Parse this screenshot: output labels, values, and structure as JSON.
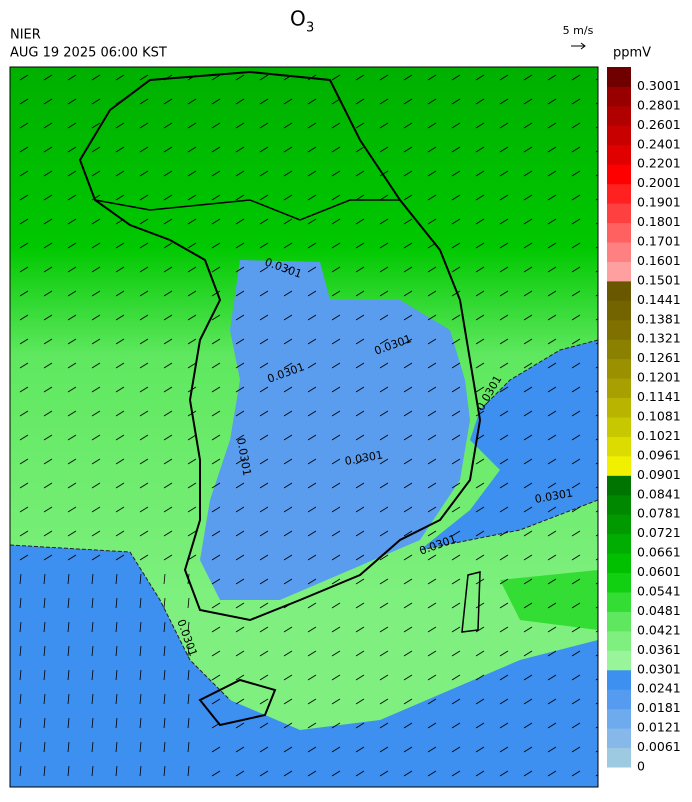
{
  "header": {
    "agency": "NIER",
    "datetime": "AUG 19 2025 06:00 KST",
    "title": "O",
    "title_subscript": "3",
    "wind_reference": "5 m/s"
  },
  "colorbar": {
    "unit": "ppmV",
    "levels": [
      0,
      0.0061,
      0.0121,
      0.0181,
      0.0241,
      0.0301,
      0.0361,
      0.0421,
      0.0481,
      0.0541,
      0.0601,
      0.0661,
      0.0721,
      0.0781,
      0.0841,
      0.0901,
      0.0961,
      0.1021,
      0.1081,
      0.1141,
      0.1201,
      0.1261,
      0.1321,
      0.1381,
      0.1441,
      0.1501,
      0.1601,
      0.1701,
      0.1801,
      0.1901,
      0.2001,
      0.2201,
      0.2401,
      0.2601,
      0.2801,
      0.3001
    ],
    "colors": [
      "#9ecae1",
      "#86b9e9",
      "#6eaaee",
      "#559cf0",
      "#3d8ff0",
      "#99f599",
      "#7ff07f",
      "#5fe85f",
      "#33dd33",
      "#11d011",
      "#00c000",
      "#00ad00",
      "#009a00",
      "#008800",
      "#007400",
      "#f0f000",
      "#dcdc00",
      "#c8c800",
      "#b8b400",
      "#a8a000",
      "#9a9000",
      "#8c8000",
      "#807000",
      "#746400",
      "#6a5800",
      "#ffa0a0",
      "#ff8080",
      "#ff6060",
      "#ff4040",
      "#ff2020",
      "#ff0000",
      "#e00000",
      "#c80000",
      "#b00000",
      "#980000",
      "#700000"
    ]
  },
  "contour_labels": [
    "0.0301",
    "0.0301",
    "0.0301",
    "0.0301",
    "0.0301",
    "0.0301",
    "0.0301",
    "0.0301",
    "0.0301"
  ]
}
